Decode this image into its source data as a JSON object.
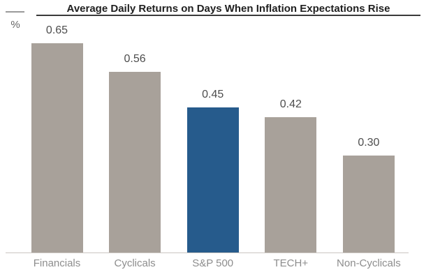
{
  "chart_data": {
    "type": "bar",
    "title": "Average Daily Returns on Days When Inflation Expectations Rise",
    "ylabel": "%",
    "xlabel": "",
    "categories": [
      "Financials",
      "Cyclicals",
      "S&P 500",
      "TECH+",
      "Non-Cyclicals"
    ],
    "values": [
      0.65,
      0.56,
      0.45,
      0.42,
      0.3
    ],
    "value_labels": [
      "0.65",
      "0.56",
      "0.45",
      "0.42",
      "0.30"
    ],
    "highlight_category": "S&P 500",
    "ylim": [
      0,
      0.7
    ],
    "grid": false,
    "legend": false,
    "colors": {
      "bar_default": "#a8a19a",
      "bar_highlight": "#265b8c",
      "title_text": "#1f1f1f",
      "value_label_text": "#4d4d4d",
      "category_label_text": "#8d8d8d",
      "unit_label_text": "#666666",
      "title_underline": "#3a3a3a",
      "unit_tick": "#9a9a9a",
      "baseline": "#cac6c2"
    }
  }
}
